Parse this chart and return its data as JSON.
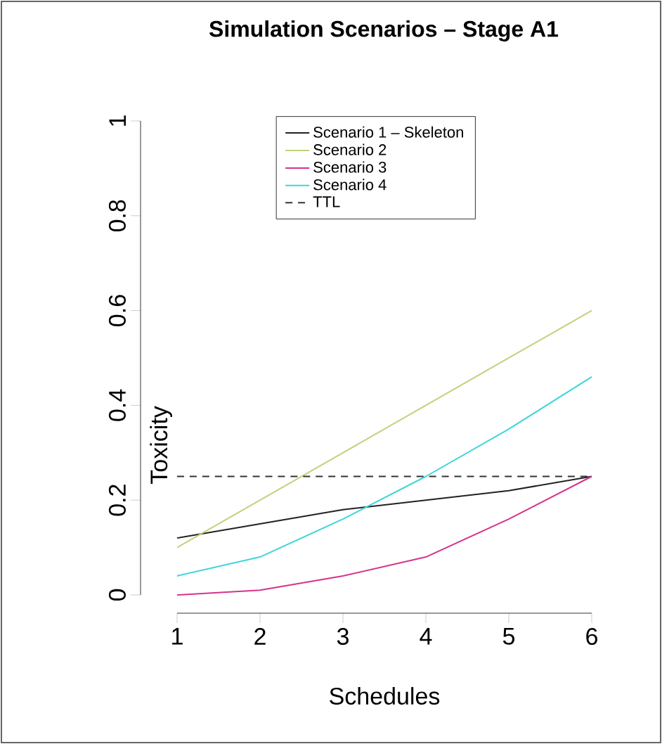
{
  "chart_data": {
    "type": "line",
    "title": "Simulation Scenarios – Stage A1",
    "xlabel": "Schedules",
    "ylabel": "Toxicity",
    "x": [
      1,
      2,
      3,
      4,
      5,
      6
    ],
    "series": [
      {
        "name": "Scenario 1 – Skeleton",
        "color": "#222222",
        "values": [
          0.12,
          0.15,
          0.18,
          0.2,
          0.22,
          0.25
        ]
      },
      {
        "name": "Scenario 2",
        "color": "#bdd47a",
        "values": [
          0.1,
          0.2,
          0.3,
          0.4,
          0.5,
          0.6
        ]
      },
      {
        "name": "Scenario 3",
        "color": "#d6338a",
        "values": [
          0,
          0.01,
          0.04,
          0.08,
          0.16,
          0.25
        ]
      },
      {
        "name": "Scenario 4",
        "color": "#3dd6d9",
        "values": [
          0.04,
          0.08,
          0.16,
          0.25,
          0.35,
          0.46
        ]
      }
    ],
    "ref_lines": [
      {
        "axis": "y",
        "value": 0.25,
        "label": "TTL",
        "color": "#333333",
        "line_style": "dashed"
      }
    ],
    "xlim": [
      1,
      6
    ],
    "ylim": [
      0,
      1
    ],
    "xticks": [
      1,
      2,
      3,
      4,
      5,
      6
    ],
    "yticks": [
      0,
      0.2,
      0.4,
      0.6,
      0.8,
      1
    ],
    "legend": "top right",
    "marker": "none",
    "line_style": "solid",
    "grid": false
  }
}
